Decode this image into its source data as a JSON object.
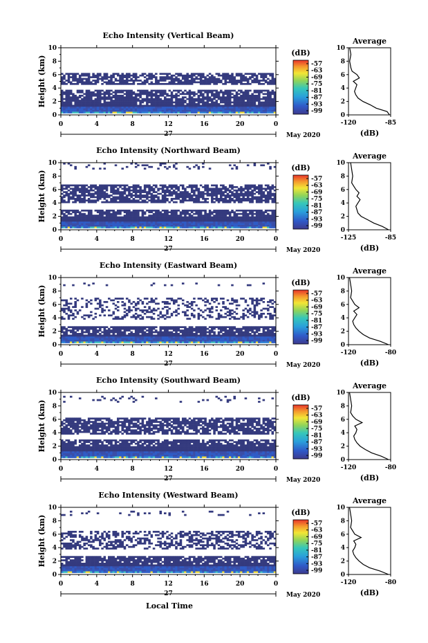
{
  "figure": {
    "xlabel": "Local Time",
    "date_label": "May 2020",
    "day_label": "27",
    "ylabel": "Height (km)",
    "profile_title": "Average",
    "profile_xlabel": "(dB)",
    "colorbar_unit": "(dB)",
    "x_ticks": [
      "0",
      "4",
      "8",
      "12",
      "16",
      "20",
      "0"
    ],
    "y_ticks": [
      "0",
      "2",
      "4",
      "6",
      "8",
      "10"
    ]
  },
  "chart_data": [
    {
      "type": "heatmap",
      "title": "Echo Intensity (Vertical Beam)",
      "xlabel": "Local Time",
      "ylabel": "Height (km)",
      "xlim": [
        0,
        24
      ],
      "ylim": [
        0,
        10
      ],
      "colorbar": {
        "label": "(dB)",
        "ticks": [
          "-57",
          "-63",
          "-69",
          "-75",
          "-81",
          "-87",
          "-93",
          "-99"
        ],
        "range": [
          -99,
          -57
        ]
      },
      "layers": [
        {
          "bottom": 0.3,
          "top": 1.5,
          "coverage": 1.0
        },
        {
          "bottom": 1.5,
          "top": 2.6,
          "coverage": 0.9
        },
        {
          "bottom": 2.6,
          "top": 3.8,
          "coverage": 0.75
        },
        {
          "bottom": 4.6,
          "top": 6.3,
          "coverage": 0.75
        }
      ],
      "profile": {
        "title": "Average",
        "xlabel": "(dB)",
        "xlim": [
          -120,
          -85
        ],
        "x_ticks": [
          "-120",
          "-85"
        ],
        "points": [
          [
            0,
            -86
          ],
          [
            0.5,
            -88
          ],
          [
            1,
            -97
          ],
          [
            1.5,
            -102
          ],
          [
            2,
            -108
          ],
          [
            2.5,
            -112
          ],
          [
            3,
            -114
          ],
          [
            3.5,
            -115
          ],
          [
            4,
            -114
          ],
          [
            4.5,
            -113
          ],
          [
            5,
            -116
          ],
          [
            5.5,
            -111
          ],
          [
            6,
            -113
          ],
          [
            6.5,
            -117
          ],
          [
            7,
            -118
          ],
          [
            8,
            -119
          ],
          [
            9,
            -118
          ],
          [
            10,
            -119
          ]
        ]
      }
    },
    {
      "type": "heatmap",
      "title": "Echo Intensity (Northward Beam)",
      "xlabel": "Local Time",
      "ylabel": "Height (km)",
      "xlim": [
        0,
        24
      ],
      "ylim": [
        0,
        10
      ],
      "colorbar": {
        "label": "(dB)",
        "ticks": [
          "-57",
          "-63",
          "-69",
          "-75",
          "-81",
          "-87",
          "-93",
          "-99"
        ],
        "range": [
          -99,
          -57
        ]
      },
      "layers": [
        {
          "bottom": 0.2,
          "top": 2.0,
          "coverage": 1.0
        },
        {
          "bottom": 2.0,
          "top": 3.0,
          "coverage": 0.8
        },
        {
          "bottom": 4.0,
          "top": 6.8,
          "coverage": 0.75
        },
        {
          "bottom": 9.0,
          "top": 10.0,
          "coverage": 0.15
        }
      ],
      "profile": {
        "title": "Average",
        "xlabel": "(dB)",
        "xlim": [
          -125,
          -85
        ],
        "x_ticks": [
          "-125",
          "-85"
        ],
        "points": [
          [
            0,
            -87
          ],
          [
            0.5,
            -93
          ],
          [
            1,
            -101
          ],
          [
            1.5,
            -107
          ],
          [
            2,
            -113
          ],
          [
            2.5,
            -116
          ],
          [
            3,
            -117
          ],
          [
            3.5,
            -118
          ],
          [
            4,
            -116
          ],
          [
            4.5,
            -114
          ],
          [
            5,
            -117
          ],
          [
            5.5,
            -115
          ],
          [
            6,
            -118
          ],
          [
            6.5,
            -120
          ],
          [
            7,
            -122
          ],
          [
            8,
            -121
          ],
          [
            9,
            -122
          ],
          [
            10,
            -123
          ]
        ]
      }
    },
    {
      "type": "heatmap",
      "title": "Echo Intensity (Eastward Beam)",
      "xlabel": "Local Time",
      "ylabel": "Height (km)",
      "xlim": [
        0,
        24
      ],
      "ylim": [
        0,
        10
      ],
      "colorbar": {
        "label": "(dB)",
        "ticks": [
          "-57",
          "-63",
          "-69",
          "-75",
          "-81",
          "-87",
          "-93",
          "-99"
        ],
        "range": [
          -99,
          -57
        ]
      },
      "layers": [
        {
          "bottom": 0.2,
          "top": 1.4,
          "coverage": 1.0
        },
        {
          "bottom": 1.4,
          "top": 2.8,
          "coverage": 0.8
        },
        {
          "bottom": 3.8,
          "top": 7.0,
          "coverage": 0.35
        },
        {
          "bottom": 8.8,
          "top": 9.2,
          "coverage": 0.1
        }
      ],
      "profile": {
        "title": "Average",
        "xlabel": "(dB)",
        "xlim": [
          -120,
          -80
        ],
        "x_ticks": [
          "-120",
          "-80"
        ],
        "points": [
          [
            0,
            -82
          ],
          [
            0.5,
            -90
          ],
          [
            1,
            -100
          ],
          [
            1.5,
            -106
          ],
          [
            2,
            -110
          ],
          [
            2.5,
            -113
          ],
          [
            3,
            -115
          ],
          [
            3.5,
            -116
          ],
          [
            4,
            -114
          ],
          [
            4.5,
            -112
          ],
          [
            5,
            -115
          ],
          [
            5.5,
            -110
          ],
          [
            6,
            -114
          ],
          [
            6.5,
            -116
          ],
          [
            7,
            -118
          ],
          [
            8,
            -117
          ],
          [
            9,
            -118
          ],
          [
            10,
            -119
          ]
        ]
      }
    },
    {
      "type": "heatmap",
      "title": "Echo Intensity (Southward Beam)",
      "xlabel": "Local Time",
      "ylabel": "Height (km)",
      "xlim": [
        0,
        24
      ],
      "ylim": [
        0,
        10
      ],
      "colorbar": {
        "label": "(dB)",
        "ticks": [
          "-57",
          "-63",
          "-69",
          "-75",
          "-81",
          "-87",
          "-93",
          "-99"
        ],
        "range": [
          -99,
          -57
        ]
      },
      "layers": [
        {
          "bottom": 0.2,
          "top": 2.0,
          "coverage": 1.0
        },
        {
          "bottom": 2.0,
          "top": 3.0,
          "coverage": 0.8
        },
        {
          "bottom": 3.8,
          "top": 6.3,
          "coverage": 0.75
        },
        {
          "bottom": 8.5,
          "top": 9.5,
          "coverage": 0.12
        }
      ],
      "profile": {
        "title": "Average",
        "xlabel": "(dB)",
        "xlim": [
          -120,
          -80
        ],
        "x_ticks": [
          "-120",
          "-80"
        ],
        "points": [
          [
            0,
            -82
          ],
          [
            0.5,
            -89
          ],
          [
            1,
            -98
          ],
          [
            1.5,
            -104
          ],
          [
            2,
            -109
          ],
          [
            2.5,
            -112
          ],
          [
            3,
            -114
          ],
          [
            3.5,
            -115
          ],
          [
            4,
            -113
          ],
          [
            4.5,
            -112
          ],
          [
            5,
            -114
          ],
          [
            5.5,
            -107
          ],
          [
            6,
            -113
          ],
          [
            6.5,
            -116
          ],
          [
            7,
            -118
          ],
          [
            8,
            -117
          ],
          [
            9,
            -118
          ],
          [
            10,
            -119
          ]
        ]
      }
    },
    {
      "type": "heatmap",
      "title": "Echo Intensity (Westward Beam)",
      "xlabel": "Local Time",
      "ylabel": "Height (km)",
      "xlim": [
        0,
        24
      ],
      "ylim": [
        0,
        10
      ],
      "colorbar": {
        "label": "(dB)",
        "ticks": [
          "-57",
          "-63",
          "-69",
          "-75",
          "-81",
          "-87",
          "-93",
          "-99"
        ],
        "range": [
          -99,
          -57
        ]
      },
      "layers": [
        {
          "bottom": 0.2,
          "top": 1.4,
          "coverage": 1.0
        },
        {
          "bottom": 1.4,
          "top": 2.8,
          "coverage": 0.85
        },
        {
          "bottom": 3.8,
          "top": 6.5,
          "coverage": 0.5
        },
        {
          "bottom": 8.8,
          "top": 9.6,
          "coverage": 0.1
        }
      ],
      "profile": {
        "title": "Average",
        "xlabel": "(dB)",
        "xlim": [
          -120,
          -80
        ],
        "x_ticks": [
          "-120",
          "-80"
        ],
        "points": [
          [
            0,
            -82
          ],
          [
            0.5,
            -90
          ],
          [
            1,
            -100
          ],
          [
            1.5,
            -106
          ],
          [
            2,
            -110
          ],
          [
            2.5,
            -113
          ],
          [
            3,
            -115
          ],
          [
            3.5,
            -116
          ],
          [
            4,
            -114
          ],
          [
            4.5,
            -113
          ],
          [
            5,
            -115
          ],
          [
            5.5,
            -108
          ],
          [
            6,
            -114
          ],
          [
            6.5,
            -116
          ],
          [
            7,
            -118
          ],
          [
            8,
            -117
          ],
          [
            9,
            -118
          ],
          [
            10,
            -119
          ]
        ]
      }
    }
  ]
}
